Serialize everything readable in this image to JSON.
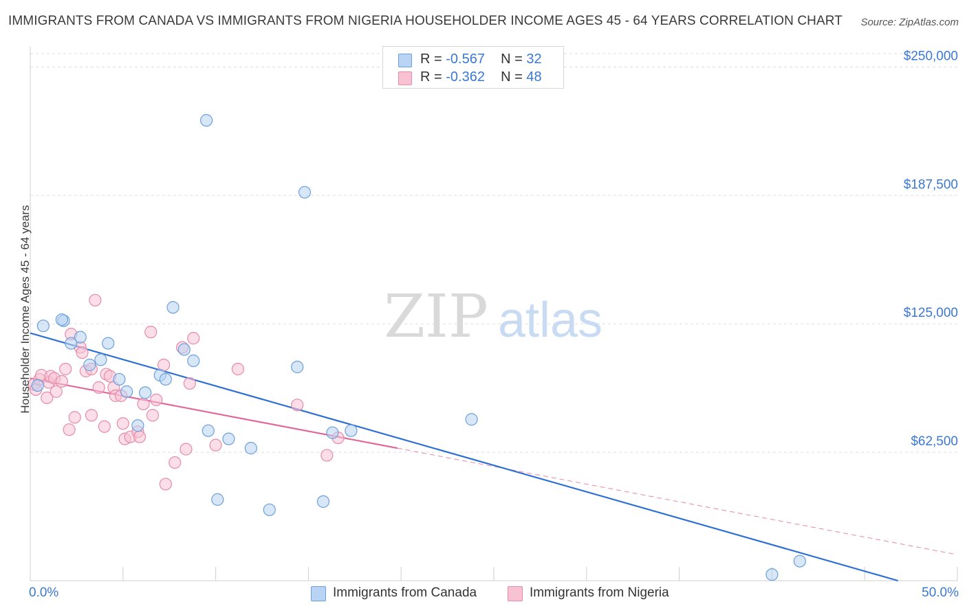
{
  "header": {
    "title": "IMMIGRANTS FROM CANADA VS IMMIGRANTS FROM NIGERIA HOUSEHOLDER INCOME AGES 45 - 64 YEARS CORRELATION CHART",
    "source": "Source: ZipAtlas.com"
  },
  "watermark": {
    "zip": "ZIP",
    "atlas": "atlas"
  },
  "legend": {
    "canada": {
      "r_label": "R = ",
      "r_value": "-0.567",
      "n_label": "N = ",
      "n_value": "32"
    },
    "nigeria": {
      "r_label": "R = ",
      "r_value": "-0.362",
      "n_label": "N = ",
      "n_value": "48"
    }
  },
  "colors": {
    "canada_fill": "#b8d3f3",
    "canada_stroke": "#6b9fdb",
    "canada_line": "#2f6fd1",
    "nigeria_fill": "#f8c2d3",
    "nigeria_stroke": "#e58aaa",
    "nigeria_line": "#e0679a",
    "accent_text": "#3a78d4",
    "grid": "#dedede"
  },
  "chart_data": {
    "type": "scatter",
    "title": "IMMIGRANTS FROM CANADA VS IMMIGRANTS FROM NIGERIA HOUSEHOLDER INCOME AGES 45 - 64 YEARS CORRELATION CHART",
    "xlabel": "",
    "ylabel": "Householder Income Ages 45 - 64 years",
    "xlim": [
      0,
      50
    ],
    "ylim": [
      0,
      262500
    ],
    "x_tick_labels": [
      "0.0%",
      "50.0%"
    ],
    "y_ticks": [
      62500,
      125000,
      187500,
      250000
    ],
    "y_tick_labels": [
      "$62,500",
      "$125,000",
      "$187,500",
      "$250,000"
    ],
    "grid": true,
    "series": [
      {
        "name": "Immigrants from Canada",
        "r": -0.567,
        "n": 32,
        "trend": {
          "x0": 0,
          "y0": 120500,
          "x1": 46.8,
          "y1": 0
        },
        "points": [
          [
            0.4,
            95000
          ],
          [
            0.7,
            124000
          ],
          [
            1.8,
            126500
          ],
          [
            1.7,
            127000
          ],
          [
            2.7,
            118500
          ],
          [
            2.2,
            115500
          ],
          [
            4.2,
            115500
          ],
          [
            3.2,
            105000
          ],
          [
            3.8,
            107500
          ],
          [
            4.8,
            98000
          ],
          [
            5.2,
            92000
          ],
          [
            5.8,
            75500
          ],
          [
            6.2,
            91500
          ],
          [
            7.0,
            100000
          ],
          [
            7.3,
            98000
          ],
          [
            7.7,
            133000
          ],
          [
            8.3,
            112500
          ],
          [
            8.8,
            107000
          ],
          [
            9.5,
            224000
          ],
          [
            9.6,
            73000
          ],
          [
            10.1,
            39500
          ],
          [
            10.7,
            69000
          ],
          [
            11.9,
            64500
          ],
          [
            12.9,
            34500
          ],
          [
            14.4,
            104000
          ],
          [
            14.8,
            189000
          ],
          [
            15.8,
            38500
          ],
          [
            16.3,
            72000
          ],
          [
            17.3,
            73000
          ],
          [
            23.8,
            78500
          ],
          [
            40.0,
            3000
          ],
          [
            41.5,
            9500
          ]
        ]
      },
      {
        "name": "Immigrants from Nigeria",
        "r": -0.362,
        "n": 48,
        "trend": {
          "x0": 0,
          "y0": 98500,
          "x1": 19.8,
          "y1": 64500
        },
        "trend_extension": {
          "x0": 19.8,
          "y0": 64500,
          "x1": 49.8,
          "y1": 13000
        },
        "points": [
          [
            0.2,
            95500
          ],
          [
            0.3,
            93000
          ],
          [
            0.5,
            98000
          ],
          [
            0.6,
            100000
          ],
          [
            0.9,
            89000
          ],
          [
            1.0,
            96500
          ],
          [
            1.1,
            99500
          ],
          [
            1.3,
            98500
          ],
          [
            1.4,
            92000
          ],
          [
            1.7,
            97000
          ],
          [
            1.9,
            103000
          ],
          [
            2.1,
            73500
          ],
          [
            2.2,
            120000
          ],
          [
            2.4,
            79500
          ],
          [
            2.7,
            113500
          ],
          [
            2.8,
            111000
          ],
          [
            3.0,
            102000
          ],
          [
            3.3,
            103000
          ],
          [
            3.3,
            80500
          ],
          [
            3.5,
            136500
          ],
          [
            3.7,
            94000
          ],
          [
            4.0,
            75000
          ],
          [
            4.1,
            100500
          ],
          [
            4.3,
            99500
          ],
          [
            4.5,
            94000
          ],
          [
            4.6,
            90000
          ],
          [
            4.9,
            90000
          ],
          [
            5.0,
            76500
          ],
          [
            5.1,
            69000
          ],
          [
            5.4,
            70000
          ],
          [
            5.8,
            72500
          ],
          [
            5.9,
            70000
          ],
          [
            6.1,
            86000
          ],
          [
            6.5,
            121000
          ],
          [
            6.6,
            80500
          ],
          [
            6.8,
            88000
          ],
          [
            7.2,
            105000
          ],
          [
            7.3,
            47000
          ],
          [
            7.8,
            57500
          ],
          [
            8.2,
            113500
          ],
          [
            8.4,
            64000
          ],
          [
            8.6,
            96000
          ],
          [
            8.8,
            118000
          ],
          [
            10.0,
            66000
          ],
          [
            11.2,
            103000
          ],
          [
            14.4,
            85500
          ],
          [
            16.0,
            61000
          ],
          [
            16.6,
            69500
          ]
        ]
      }
    ]
  },
  "bottom_legend": {
    "canada": "Immigrants from Canada",
    "nigeria": "Immigrants from Nigeria"
  }
}
